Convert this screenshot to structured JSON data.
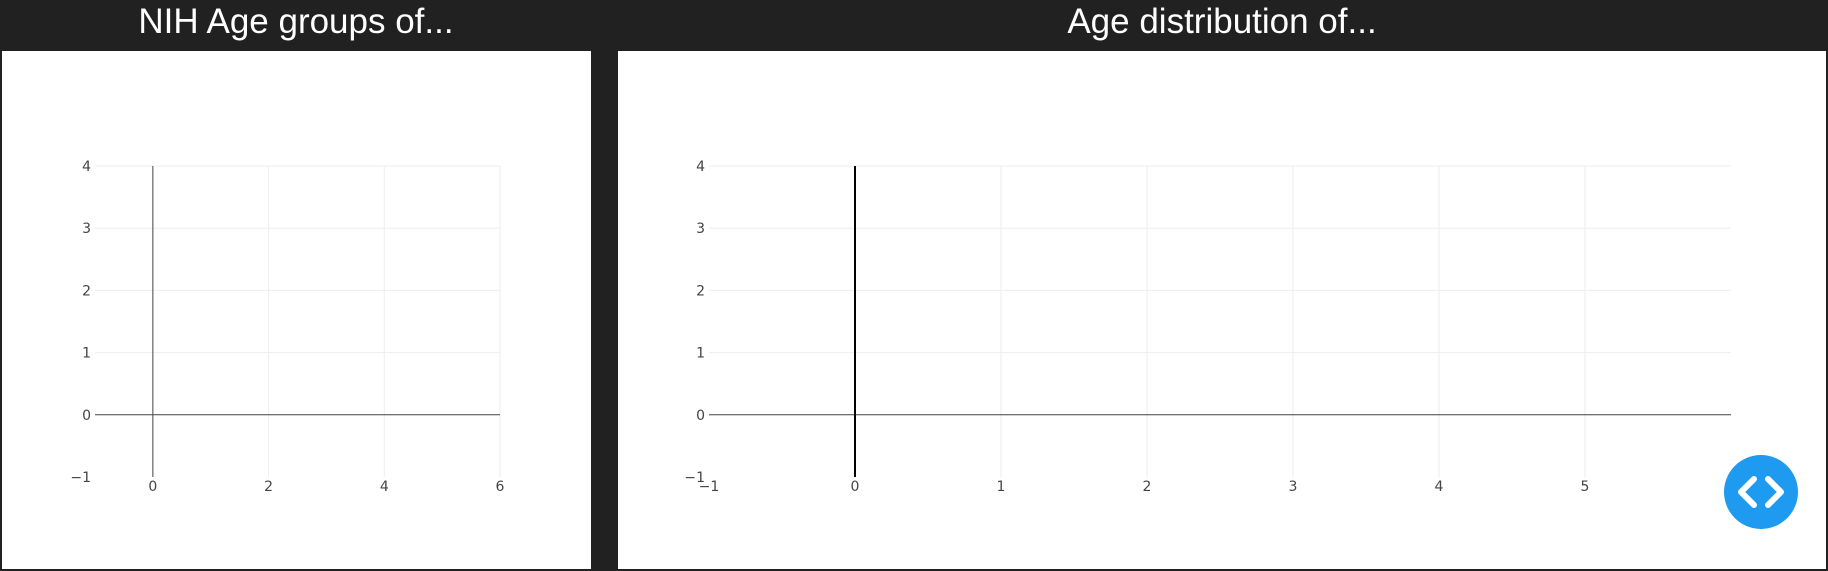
{
  "panels": {
    "left": {
      "title": "NIH Age groups of..."
    },
    "right": {
      "title": "Age distribution of..."
    }
  },
  "chart_data": [
    {
      "type": "bar",
      "title": "NIH Age groups of...",
      "xlabel": "",
      "ylabel": "",
      "series": [],
      "xlim": [
        -1,
        6
      ],
      "ylim": [
        -1,
        4
      ],
      "x_ticks": [
        0,
        2,
        4,
        6
      ],
      "y_ticks": [
        -1,
        0,
        1,
        2,
        3,
        4
      ],
      "grid": true,
      "legend": "none"
    },
    {
      "type": "bar",
      "title": "Age distribution of...",
      "xlabel": "",
      "ylabel": "",
      "series": [],
      "xlim": [
        -1,
        6
      ],
      "ylim": [
        -1,
        4
      ],
      "x_ticks": [
        -1,
        0,
        1,
        2,
        3,
        4,
        5
      ],
      "y_ticks": [
        -1,
        0,
        1,
        2,
        3,
        4
      ],
      "grid": true,
      "legend": "none"
    }
  ],
  "colors": {
    "background": "#212121",
    "panel": "#ffffff",
    "grid": "#eeeeee",
    "axis": "#444444",
    "accent": "#1e9bf0"
  },
  "code_button": {
    "icon": "code-icon"
  }
}
